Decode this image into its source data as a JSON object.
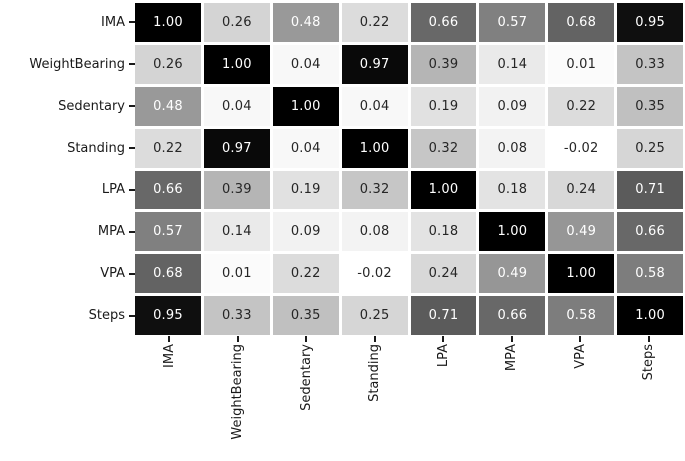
{
  "figure": {
    "background_color": "#ffffff",
    "grid_gap_color": "#ffffff",
    "tick_color": "#1a1a1a",
    "annotation_dark_color": "#262626",
    "annotation_light_color": "#ffffff"
  },
  "chart_data": {
    "type": "heatmap",
    "title": "",
    "xlabel": "",
    "ylabel": "",
    "categories": [
      "IMA",
      "WeightBearing",
      "Sedentary",
      "Standing",
      "LPA",
      "MPA",
      "VPA",
      "Steps"
    ],
    "x_tick_labels": [
      "IMA",
      "WeightBearing",
      "Sedentary",
      "Standing",
      "LPA",
      "MPA",
      "VPA",
      "Steps"
    ],
    "y_tick_labels": [
      "IMA",
      "WeightBearing",
      "Sedentary",
      "Standing",
      "LPA",
      "MPA",
      "VPA",
      "Steps"
    ],
    "matrix": [
      [
        1.0,
        0.26,
        0.48,
        0.22,
        0.66,
        0.57,
        0.68,
        0.95
      ],
      [
        0.26,
        1.0,
        0.04,
        0.97,
        0.39,
        0.14,
        0.01,
        0.33
      ],
      [
        0.48,
        0.04,
        1.0,
        0.04,
        0.19,
        0.09,
        0.22,
        0.35
      ],
      [
        0.22,
        0.97,
        0.04,
        1.0,
        0.32,
        0.08,
        -0.02,
        0.25
      ],
      [
        0.66,
        0.39,
        0.19,
        0.32,
        1.0,
        0.18,
        0.24,
        0.71
      ],
      [
        0.57,
        0.14,
        0.09,
        0.08,
        0.18,
        1.0,
        0.49,
        0.66
      ],
      [
        0.68,
        0.01,
        0.22,
        -0.02,
        0.24,
        0.49,
        1.0,
        0.58
      ],
      [
        0.95,
        0.33,
        0.35,
        0.25,
        0.71,
        0.66,
        0.58,
        1.0
      ]
    ],
    "vmin": -0.02,
    "vmax": 1.0,
    "value_format": "2-decimals",
    "annotations_shown": true,
    "colormap": "Greys",
    "colormap_stops": {
      "positions": [
        0,
        0.125,
        0.25,
        0.375,
        0.5,
        0.625,
        0.75,
        0.875,
        1.0
      ],
      "gray_values": [
        255,
        240,
        217,
        189,
        150,
        115,
        82,
        37,
        0
      ]
    },
    "legend": "none",
    "grid": "white-gaps-between-cells"
  }
}
